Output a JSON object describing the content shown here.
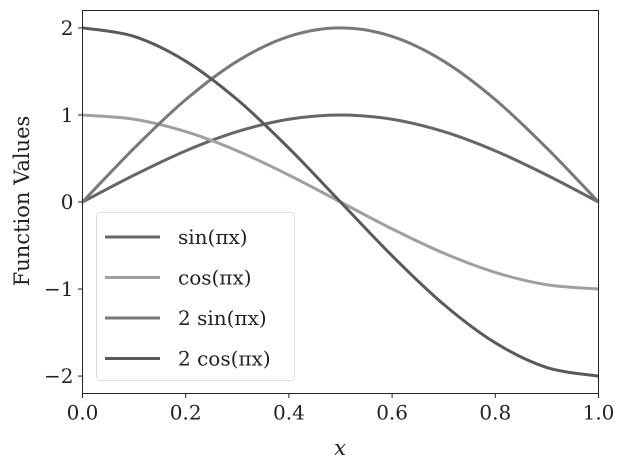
{
  "chart_data": {
    "type": "line",
    "title": "",
    "xlabel": "x",
    "ylabel": "Function Values",
    "xlim": [
      0.0,
      1.0
    ],
    "ylim": [
      -2.2,
      2.2
    ],
    "xticks": [
      0.0,
      0.2,
      0.4,
      0.6,
      0.8,
      1.0
    ],
    "xtick_labels": [
      "0.0",
      "0.2",
      "0.4",
      "0.6",
      "0.8",
      "1.0"
    ],
    "yticks": [
      -2,
      -1,
      0,
      1,
      2
    ],
    "ytick_labels": [
      "−2",
      "−1",
      "0",
      "1",
      "2"
    ],
    "grid": false,
    "legend_position": "lower left",
    "x": [
      0.0,
      0.1,
      0.2,
      0.3,
      0.4,
      0.5,
      0.6,
      0.7,
      0.8,
      0.9,
      1.0
    ],
    "series": [
      {
        "name": "sin(πx)",
        "color": "#666666",
        "values": [
          0.0,
          0.309,
          0.588,
          0.809,
          0.951,
          1.0,
          0.951,
          0.809,
          0.588,
          0.309,
          0.0
        ]
      },
      {
        "name": "cos(πx)",
        "color": "#a0a0a0",
        "values": [
          1.0,
          0.951,
          0.809,
          0.588,
          0.309,
          0.0,
          -0.309,
          -0.588,
          -0.809,
          -0.951,
          -1.0
        ]
      },
      {
        "name": "2 sin(πx)",
        "color": "#787878",
        "values": [
          0.0,
          0.618,
          1.176,
          1.618,
          1.902,
          2.0,
          1.902,
          1.618,
          1.176,
          0.618,
          0.0
        ]
      },
      {
        "name": "2 cos(πx)",
        "color": "#5a5a5a",
        "values": [
          2.0,
          1.902,
          1.618,
          1.176,
          0.618,
          0.0,
          -0.618,
          -1.176,
          -1.618,
          -1.902,
          -2.0
        ]
      }
    ]
  }
}
